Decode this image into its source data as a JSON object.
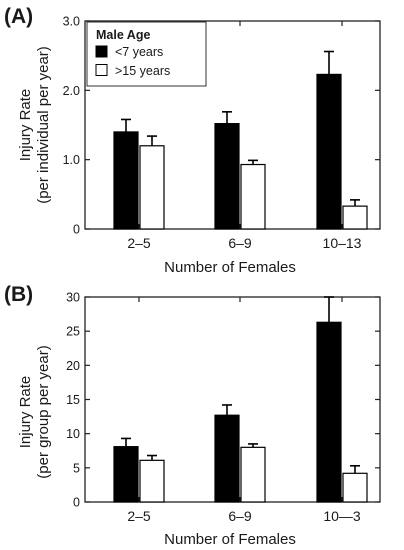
{
  "chart_data": [
    {
      "type": "bar",
      "panel_label": "(A)",
      "categories": [
        "2–5",
        "6–9",
        "10–13"
      ],
      "xlabel": "Number of Females",
      "ylabel_line1": "Injury Rate",
      "ylabel_line2": "(per individual per year)",
      "ylim": [
        0,
        3.0
      ],
      "yticks": [
        0,
        1.0,
        2.0,
        3.0
      ],
      "ytick_labels": [
        "0",
        "1.0",
        "2.0",
        "3.0"
      ],
      "legend": {
        "title": "Male Age",
        "placement": "top-left"
      },
      "series": [
        {
          "name": "<7 years",
          "fill": "#000000",
          "values": [
            1.4,
            1.52,
            2.23
          ],
          "errors": [
            0.18,
            0.17,
            0.33
          ]
        },
        {
          "name": ">15 years",
          "fill": "#ffffff",
          "values": [
            1.2,
            0.93,
            0.33
          ],
          "errors": [
            0.14,
            0.06,
            0.09
          ]
        }
      ]
    },
    {
      "type": "bar",
      "panel_label": "(B)",
      "categories": [
        "2–5",
        "6–9",
        "10—3"
      ],
      "xlabel": "Number of Females",
      "ylabel_line1": "Injury Rate",
      "ylabel_line2": "(per group per year)",
      "ylim": [
        0,
        30
      ],
      "yticks": [
        0,
        5,
        10,
        15,
        20,
        25,
        30
      ],
      "ytick_labels": [
        "0",
        "5",
        "10",
        "15",
        "20",
        "25",
        "30"
      ],
      "series": [
        {
          "name": "<7 years",
          "fill": "#000000",
          "values": [
            8.1,
            12.7,
            26.3
          ],
          "errors": [
            1.2,
            1.5,
            3.9
          ]
        },
        {
          "name": ">15 years",
          "fill": "#ffffff",
          "values": [
            6.1,
            8.0,
            4.2
          ],
          "errors": [
            0.7,
            0.5,
            1.1
          ]
        }
      ]
    }
  ]
}
